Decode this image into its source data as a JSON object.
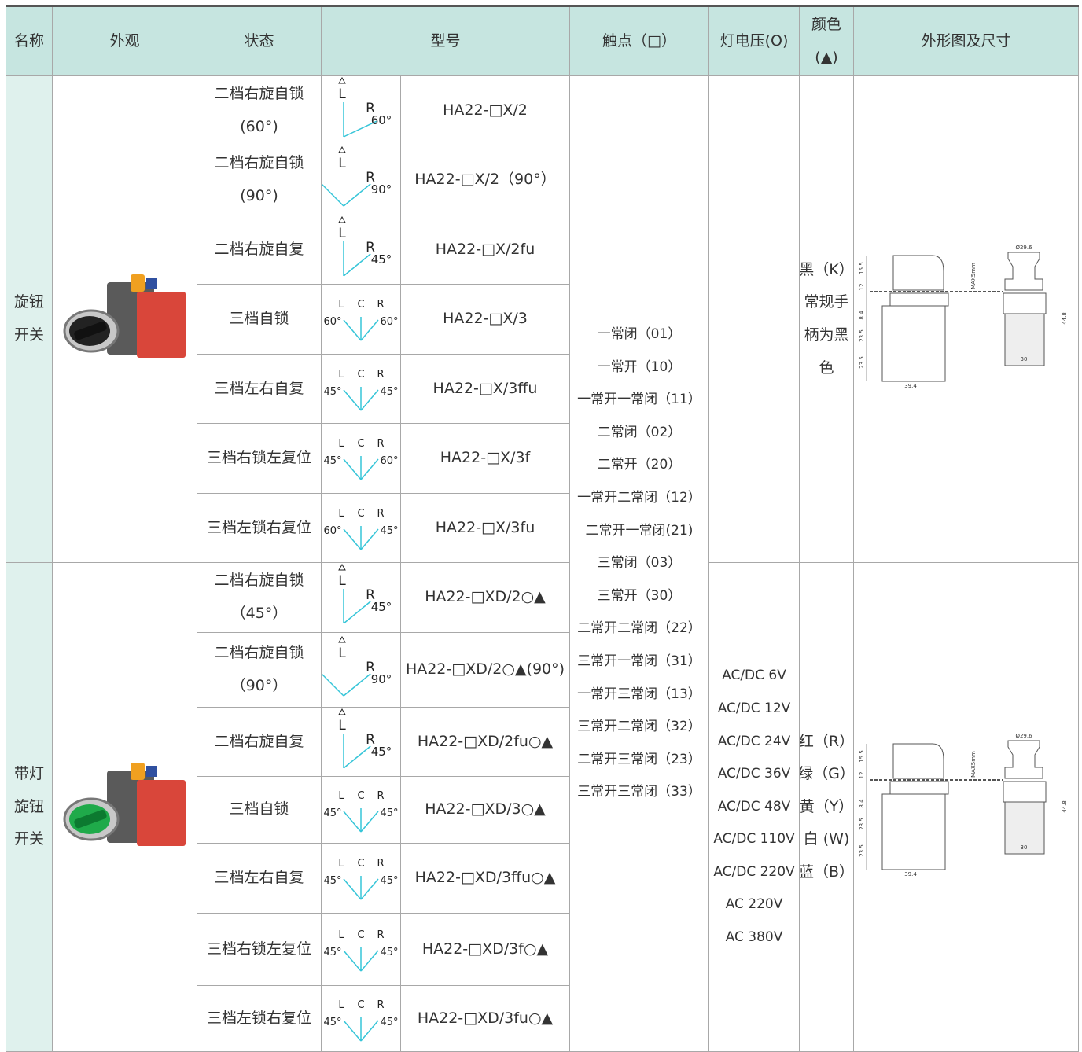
{
  "header": [
    [
      "名称"
    ],
    [
      "外观"
    ],
    [
      "状态"
    ],
    [
      "型号"
    ],
    [
      "触点（□）"
    ],
    [
      "灯电压(O)"
    ],
    [
      "颜色",
      "(▲)"
    ],
    [
      "外形图及尺寸"
    ]
  ],
  "sections": [
    {
      "name": [
        "旋钮",
        "开关"
      ],
      "rows": [
        {
          "state": [
            "二档右旋自锁",
            "(60°)"
          ],
          "diagram": [
            "L",
            "R",
            "60°"
          ],
          "model": "HA22-□X/2"
        },
        {
          "state": [
            "二档右旋自锁",
            "(90°)"
          ],
          "diagram": [
            "L",
            "R",
            "90°"
          ],
          "model": "HA22-□X/2（90°）"
        },
        {
          "state": [
            "二档右旋自复"
          ],
          "diagram": [
            "L",
            "R",
            "45°"
          ],
          "model": "HA22-□X/2fu"
        },
        {
          "state": [
            "三档自锁"
          ],
          "diagram": [
            "L",
            "C",
            "R",
            "60°",
            "60°"
          ],
          "model": "HA22-□X/3"
        },
        {
          "state": [
            "三档左右自复"
          ],
          "diagram": [
            "L",
            "C",
            "R",
            "45°",
            "45°"
          ],
          "model": "HA22-□X/3ffu"
        },
        {
          "state": [
            "三档右锁左复位"
          ],
          "diagram": [
            "L",
            "C",
            "R",
            "45°",
            "60°"
          ],
          "model": "HA22-□X/3f"
        },
        {
          "state": [
            "三档左锁右复位"
          ],
          "diagram": [
            "L",
            "C",
            "R",
            "60°",
            "45°"
          ],
          "model": "HA22-□X/3fu"
        }
      ],
      "voltage": [],
      "color": [
        "黑（K）",
        "常规手",
        "柄为黑",
        "色"
      ]
    },
    {
      "name": [
        "带灯",
        "旋钮",
        "开关"
      ],
      "rows": [
        {
          "state": [
            "二档右旋自锁",
            "（45°）"
          ],
          "diagram": [
            "L",
            "R",
            "45°"
          ],
          "model": "HA22-□XD/2○▲"
        },
        {
          "state": [
            "二档右旋自锁",
            "（90°）"
          ],
          "diagram": [
            "L",
            "R",
            "90°"
          ],
          "model": "HA22-□XD/2○▲(90°)"
        },
        {
          "state": [
            "二档右旋自复"
          ],
          "diagram": [
            "L",
            "R",
            "45°"
          ],
          "model": "HA22-□XD/2fu○▲"
        },
        {
          "state": [
            "三档自锁"
          ],
          "diagram": [
            "L",
            "C",
            "R",
            "45°",
            "45°"
          ],
          "model": "HA22-□XD/3○▲"
        },
        {
          "state": [
            "三档左右自复"
          ],
          "diagram": [
            "L",
            "C",
            "R",
            "45°",
            "45°"
          ],
          "model": "HA22-□XD/3ffu○▲"
        },
        {
          "state": [
            "三档右锁左复位"
          ],
          "diagram": [
            "L",
            "C",
            "R",
            "45°",
            "45°"
          ],
          "model": "HA22-□XD/3f○▲"
        },
        {
          "state": [
            "三档左锁右复位"
          ],
          "diagram": [
            "L",
            "C",
            "R",
            "45°",
            "45°"
          ],
          "model": "HA22-□XD/3fu○▲"
        }
      ],
      "voltage": [
        "AC/DC 6V",
        "AC/DC 12V",
        "AC/DC 24V",
        "AC/DC 36V",
        "AC/DC 48V",
        "AC/DC 110V",
        "AC/DC 220V",
        "AC 220V",
        "AC 380V"
      ],
      "color": [
        "红（R）",
        "绿（G）",
        "黄（Y）",
        "白 (W)",
        "蓝（B）"
      ]
    }
  ],
  "contacts": [
    "一常闭（01）",
    "一常开（10）",
    "一常开一常闭（11）",
    "二常闭（02）",
    "二常开（20）",
    "一常开二常闭（12）",
    "二常开一常闭(21)",
    "三常闭（03）",
    "三常开（30）",
    "二常开二常闭（22）",
    "三常开一常闭（31）",
    "一常开三常闭（13）",
    "三常开二常闭（32）",
    "二常开三常闭（23）",
    "三常开三常闭（33）"
  ],
  "drawing_labels": [
    "Ø29.6",
    "15.5",
    "12",
    "8.4",
    "23.5",
    "23.5",
    "39.4",
    "30",
    "44.8",
    "MAX5mm"
  ]
}
